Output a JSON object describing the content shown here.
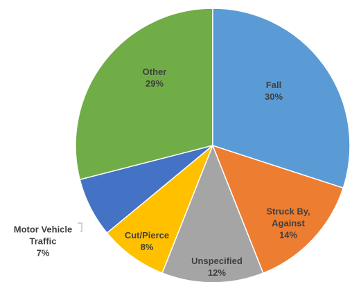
{
  "chart_data": {
    "type": "pie",
    "categories": [
      "Fall",
      "Struck By, Against",
      "Unspecified",
      "Cut/Pierce",
      "Motor Vehicle Traffic",
      "Other"
    ],
    "values": [
      30,
      14,
      12,
      8,
      7,
      29
    ],
    "value_labels": [
      "30%",
      "14%",
      "12%",
      "8%",
      "7%",
      "29%"
    ],
    "colors": [
      "#5b9bd5",
      "#ed7d31",
      "#a5a5a5",
      "#ffc000",
      "#4472c4",
      "#70ad47"
    ]
  }
}
